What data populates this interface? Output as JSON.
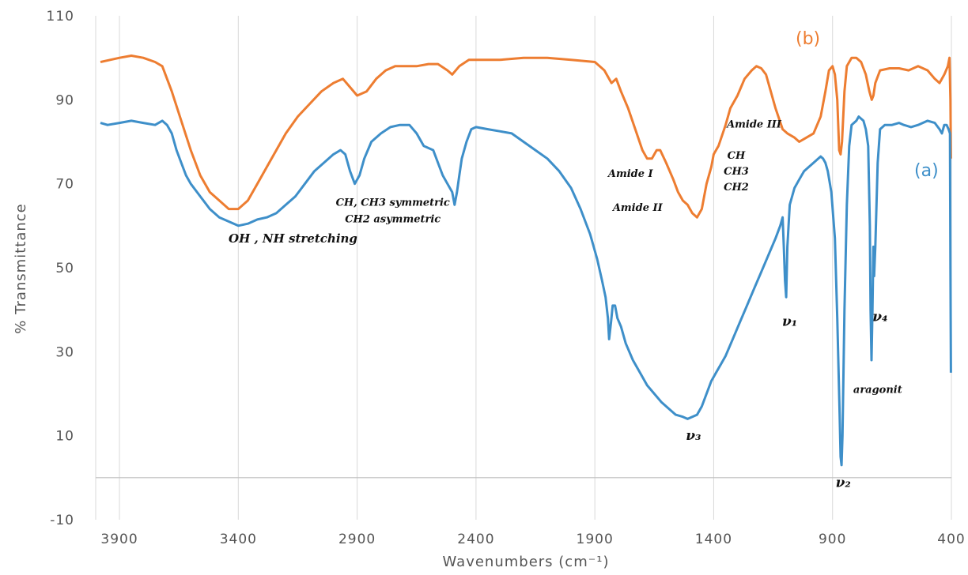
{
  "chart_data": {
    "type": "line",
    "xlabel": "Wavenumbers (cm⁻¹)",
    "ylabel": "% Transmittance",
    "xlim": [
      4000,
      400
    ],
    "x_reversed": true,
    "ylim": [
      -10,
      110
    ],
    "x_ticks": [
      3900,
      3400,
      2900,
      2400,
      1900,
      1400,
      900,
      400
    ],
    "y_ticks": [
      110,
      90,
      70,
      50,
      30,
      10,
      -10
    ],
    "grid": "vertical",
    "zero_line": 0,
    "series": [
      {
        "name": "(b)",
        "color": "#ED7D31",
        "points": [
          [
            3980,
            99
          ],
          [
            3900,
            100
          ],
          [
            3850,
            100.5
          ],
          [
            3800,
            100
          ],
          [
            3750,
            99
          ],
          [
            3720,
            98
          ],
          [
            3680,
            92
          ],
          [
            3640,
            85
          ],
          [
            3600,
            78
          ],
          [
            3560,
            72
          ],
          [
            3520,
            68
          ],
          [
            3480,
            66
          ],
          [
            3440,
            64
          ],
          [
            3400,
            64
          ],
          [
            3360,
            66
          ],
          [
            3320,
            70
          ],
          [
            3280,
            74
          ],
          [
            3240,
            78
          ],
          [
            3200,
            82
          ],
          [
            3150,
            86
          ],
          [
            3100,
            89
          ],
          [
            3050,
            92
          ],
          [
            3000,
            94
          ],
          [
            2960,
            95
          ],
          [
            2930,
            93
          ],
          [
            2900,
            91
          ],
          [
            2860,
            92
          ],
          [
            2820,
            95
          ],
          [
            2780,
            97
          ],
          [
            2740,
            98
          ],
          [
            2700,
            98
          ],
          [
            2650,
            98
          ],
          [
            2600,
            98.5
          ],
          [
            2560,
            98.5
          ],
          [
            2520,
            97
          ],
          [
            2500,
            96
          ],
          [
            2470,
            98
          ],
          [
            2430,
            99.5
          ],
          [
            2350,
            99.5
          ],
          [
            2300,
            99.5
          ],
          [
            2200,
            100
          ],
          [
            2100,
            100
          ],
          [
            2000,
            99.5
          ],
          [
            1900,
            99
          ],
          [
            1860,
            97
          ],
          [
            1830,
            94
          ],
          [
            1810,
            95
          ],
          [
            1790,
            92
          ],
          [
            1760,
            88
          ],
          [
            1730,
            83
          ],
          [
            1700,
            78
          ],
          [
            1680,
            76
          ],
          [
            1660,
            76
          ],
          [
            1640,
            78
          ],
          [
            1625,
            78
          ],
          [
            1600,
            75
          ],
          [
            1570,
            71
          ],
          [
            1550,
            68
          ],
          [
            1530,
            66
          ],
          [
            1510,
            65
          ],
          [
            1490,
            63
          ],
          [
            1470,
            62
          ],
          [
            1450,
            64
          ],
          [
            1430,
            70
          ],
          [
            1410,
            74
          ],
          [
            1400,
            77
          ],
          [
            1380,
            79
          ],
          [
            1350,
            84
          ],
          [
            1330,
            88
          ],
          [
            1300,
            91
          ],
          [
            1270,
            95
          ],
          [
            1240,
            97
          ],
          [
            1220,
            98
          ],
          [
            1200,
            97.5
          ],
          [
            1180,
            96
          ],
          [
            1160,
            92
          ],
          [
            1140,
            88
          ],
          [
            1110,
            83
          ],
          [
            1090,
            82
          ],
          [
            1060,
            81
          ],
          [
            1040,
            80
          ],
          [
            1010,
            81
          ],
          [
            980,
            82
          ],
          [
            950,
            86
          ],
          [
            930,
            92
          ],
          [
            915,
            97
          ],
          [
            900,
            98
          ],
          [
            890,
            96
          ],
          [
            880,
            90
          ],
          [
            872,
            78
          ],
          [
            866,
            77
          ],
          [
            860,
            80
          ],
          [
            850,
            92
          ],
          [
            840,
            98
          ],
          [
            820,
            100
          ],
          [
            800,
            100
          ],
          [
            780,
            99
          ],
          [
            760,
            96
          ],
          [
            745,
            92
          ],
          [
            735,
            90
          ],
          [
            728,
            91
          ],
          [
            720,
            94
          ],
          [
            700,
            97
          ],
          [
            660,
            97.5
          ],
          [
            620,
            97.5
          ],
          [
            580,
            97
          ],
          [
            540,
            98
          ],
          [
            500,
            97
          ],
          [
            470,
            95
          ],
          [
            450,
            94
          ],
          [
            430,
            96
          ],
          [
            415,
            98
          ],
          [
            408,
            100
          ],
          [
            404,
            90
          ],
          [
            402,
            76
          ]
        ]
      },
      {
        "name": "(a)",
        "color": "#3E8FC9",
        "points": [
          [
            3980,
            84.5
          ],
          [
            3950,
            84
          ],
          [
            3900,
            84.5
          ],
          [
            3850,
            85
          ],
          [
            3800,
            84.5
          ],
          [
            3750,
            84
          ],
          [
            3720,
            85
          ],
          [
            3700,
            84
          ],
          [
            3680,
            82
          ],
          [
            3660,
            78
          ],
          [
            3640,
            75
          ],
          [
            3620,
            72
          ],
          [
            3600,
            70
          ],
          [
            3560,
            67
          ],
          [
            3520,
            64
          ],
          [
            3480,
            62
          ],
          [
            3440,
            61
          ],
          [
            3400,
            60
          ],
          [
            3360,
            60.5
          ],
          [
            3320,
            61.5
          ],
          [
            3280,
            62
          ],
          [
            3240,
            63
          ],
          [
            3200,
            65
          ],
          [
            3160,
            67
          ],
          [
            3120,
            70
          ],
          [
            3080,
            73
          ],
          [
            3040,
            75
          ],
          [
            3000,
            77
          ],
          [
            2970,
            78
          ],
          [
            2950,
            77
          ],
          [
            2930,
            73
          ],
          [
            2910,
            70
          ],
          [
            2890,
            72
          ],
          [
            2870,
            76
          ],
          [
            2840,
            80
          ],
          [
            2800,
            82
          ],
          [
            2760,
            83.5
          ],
          [
            2720,
            84
          ],
          [
            2680,
            84
          ],
          [
            2650,
            82
          ],
          [
            2620,
            79
          ],
          [
            2580,
            78
          ],
          [
            2560,
            75
          ],
          [
            2540,
            72
          ],
          [
            2520,
            70
          ],
          [
            2500,
            68
          ],
          [
            2490,
            65
          ],
          [
            2480,
            68
          ],
          [
            2470,
            72
          ],
          [
            2460,
            76
          ],
          [
            2440,
            80
          ],
          [
            2420,
            83
          ],
          [
            2400,
            83.5
          ],
          [
            2350,
            83
          ],
          [
            2300,
            82.5
          ],
          [
            2250,
            82
          ],
          [
            2200,
            80
          ],
          [
            2150,
            78
          ],
          [
            2100,
            76
          ],
          [
            2050,
            73
          ],
          [
            2000,
            69
          ],
          [
            1960,
            64
          ],
          [
            1920,
            58
          ],
          [
            1890,
            52
          ],
          [
            1870,
            47
          ],
          [
            1855,
            43
          ],
          [
            1845,
            38
          ],
          [
            1840,
            33
          ],
          [
            1832,
            37
          ],
          [
            1825,
            41
          ],
          [
            1815,
            41
          ],
          [
            1805,
            38
          ],
          [
            1790,
            36
          ],
          [
            1770,
            32
          ],
          [
            1740,
            28
          ],
          [
            1710,
            25
          ],
          [
            1680,
            22
          ],
          [
            1650,
            20
          ],
          [
            1620,
            18
          ],
          [
            1590,
            16.5
          ],
          [
            1560,
            15
          ],
          [
            1530,
            14.5
          ],
          [
            1510,
            14
          ],
          [
            1490,
            14.5
          ],
          [
            1470,
            15
          ],
          [
            1450,
            17
          ],
          [
            1430,
            20
          ],
          [
            1410,
            23
          ],
          [
            1390,
            25
          ],
          [
            1370,
            27
          ],
          [
            1350,
            29
          ],
          [
            1320,
            33
          ],
          [
            1290,
            37
          ],
          [
            1260,
            41
          ],
          [
            1230,
            45
          ],
          [
            1200,
            49
          ],
          [
            1170,
            53
          ],
          [
            1140,
            57
          ],
          [
            1120,
            60
          ],
          [
            1110,
            62
          ],
          [
            1105,
            55
          ],
          [
            1100,
            47
          ],
          [
            1095,
            43
          ],
          [
            1090,
            55
          ],
          [
            1080,
            65
          ],
          [
            1060,
            69
          ],
          [
            1040,
            71
          ],
          [
            1020,
            73
          ],
          [
            1000,
            74
          ],
          [
            980,
            75
          ],
          [
            960,
            76
          ],
          [
            950,
            76.5
          ],
          [
            940,
            76
          ],
          [
            930,
            75
          ],
          [
            920,
            73
          ],
          [
            905,
            68
          ],
          [
            890,
            57
          ],
          [
            880,
            38
          ],
          [
            870,
            15
          ],
          [
            866,
            5
          ],
          [
            862,
            3
          ],
          [
            858,
            10
          ],
          [
            850,
            40
          ],
          [
            840,
            65
          ],
          [
            830,
            79
          ],
          [
            820,
            84
          ],
          [
            800,
            85
          ],
          [
            790,
            86
          ],
          [
            770,
            85
          ],
          [
            760,
            83
          ],
          [
            750,
            79
          ],
          [
            743,
            60
          ],
          [
            740,
            40
          ],
          [
            736,
            28
          ],
          [
            732,
            40
          ],
          [
            728,
            55
          ],
          [
            725,
            48
          ],
          [
            720,
            55
          ],
          [
            710,
            75
          ],
          [
            700,
            83
          ],
          [
            680,
            84
          ],
          [
            650,
            84
          ],
          [
            620,
            84.5
          ],
          [
            600,
            84
          ],
          [
            570,
            83.5
          ],
          [
            540,
            84
          ],
          [
            500,
            85
          ],
          [
            470,
            84.5
          ],
          [
            450,
            83
          ],
          [
            440,
            82
          ],
          [
            430,
            84
          ],
          [
            420,
            84
          ],
          [
            412,
            83
          ],
          [
            406,
            82
          ],
          [
            404,
            50
          ],
          [
            402,
            25
          ]
        ]
      }
    ],
    "series_labels": [
      "(b)",
      "(a)"
    ],
    "annotations": [
      {
        "text": "OH , NH stretching",
        "x": 3170,
        "y": 56,
        "size": "large"
      },
      {
        "text": "CH, CH3 symmetric",
        "x": 2750,
        "y": 64.8,
        "size": "normal"
      },
      {
        "text": "CH2 asymmetric",
        "x": 2750,
        "y": 60.8,
        "size": "normal"
      },
      {
        "text": "Amide I",
        "x": 1750,
        "y": 71.6,
        "size": "normal"
      },
      {
        "text": "Amide II",
        "x": 1720,
        "y": 63.5,
        "size": "normal"
      },
      {
        "text": "Amide III",
        "x": 1230,
        "y": 83.4,
        "size": "normal"
      },
      {
        "text": "CH",
        "x": 1305,
        "y": 76,
        "size": "normal"
      },
      {
        "text": "CH3",
        "x": 1305,
        "y": 72.2,
        "size": "normal"
      },
      {
        "text": "CH2",
        "x": 1305,
        "y": 68.4,
        "size": "normal"
      },
      {
        "text": "ν₁",
        "x": 1080,
        "y": 36.2,
        "size": "big"
      },
      {
        "text": "ν₄",
        "x": 700,
        "y": 37.3,
        "size": "big"
      },
      {
        "text": "ν₃",
        "x": 1485,
        "y": 9,
        "size": "big"
      },
      {
        "text": "ν₂",
        "x": 855,
        "y": -2.2,
        "size": "big"
      },
      {
        "text": "aragonit",
        "x": 710,
        "y": 20.2,
        "size": "normal"
      }
    ]
  }
}
